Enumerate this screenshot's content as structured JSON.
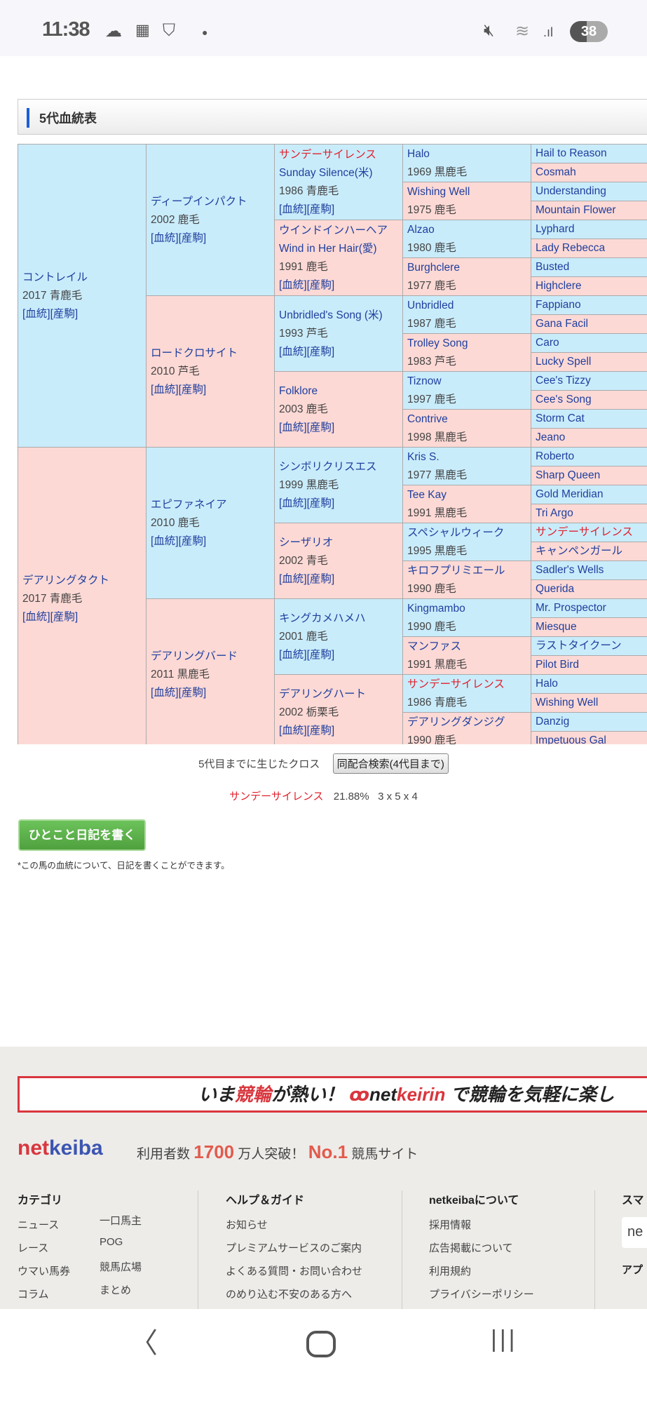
{
  "status_bar": {
    "time": "11:38",
    "icons": [
      "cloud-icon",
      "calendar-icon",
      "shield-check-icon",
      "dot-icon",
      "mute-icon",
      "wifi-icon",
      "signal-icon"
    ],
    "battery": "38"
  },
  "section": {
    "title": "5代血統表"
  },
  "links": {
    "pedigree": "[血統]",
    "offspring": "[産駒]"
  },
  "colors": {
    "male": "#c9ecfb",
    "female": "#fdd9d5",
    "link": "#1f3f9e",
    "highlight": "#e0222e"
  },
  "pedigree": {
    "gen1": [
      {
        "name": "コントレイル",
        "info": "2017 青鹿毛"
      },
      {
        "name": "デアリングタクト",
        "info": "2017 青鹿毛"
      }
    ],
    "gen2": [
      {
        "name": "ディープインパクト",
        "info": "2002 鹿毛"
      },
      {
        "name": "ロードクロサイト",
        "info": "2010 芦毛"
      },
      {
        "name": "エピファネイア",
        "info": "2010 鹿毛"
      },
      {
        "name": "デアリングバード",
        "info": "2011 黒鹿毛"
      }
    ],
    "gen3": [
      {
        "name": "サンデーサイレンス",
        "sub": "Sunday Silence(米)",
        "info": "1986 青鹿毛",
        "highlight": true
      },
      {
        "name": "ウインドインハーヘア",
        "sub": "Wind in Her Hair(愛)",
        "info": "1991 鹿毛"
      },
      {
        "name": "Unbridled's Song (米)",
        "info": "1993 芦毛"
      },
      {
        "name": "Folklore",
        "info": "2003 鹿毛"
      },
      {
        "name": "シンボリクリスエス",
        "info": "1999 黒鹿毛"
      },
      {
        "name": "シーザリオ",
        "info": "2002 青毛"
      },
      {
        "name": "キングカメハメハ",
        "info": "2001 鹿毛"
      },
      {
        "name": "デアリングハート",
        "info": "2002 栃栗毛"
      }
    ],
    "gen4": [
      {
        "name": "Halo",
        "info": "1969 黒鹿毛"
      },
      {
        "name": "Wishing Well",
        "info": "1975 鹿毛"
      },
      {
        "name": "Alzao",
        "info": "1980 鹿毛"
      },
      {
        "name": "Burghclere",
        "info": "1977 鹿毛"
      },
      {
        "name": "Unbridled",
        "info": "1987 鹿毛"
      },
      {
        "name": "Trolley Song",
        "info": "1983 芦毛"
      },
      {
        "name": "Tiznow",
        "info": "1997 鹿毛"
      },
      {
        "name": "Contrive",
        "info": "1998 黒鹿毛"
      },
      {
        "name": "Kris S.",
        "info": "1977 黒鹿毛"
      },
      {
        "name": "Tee Kay",
        "info": "1991 黒鹿毛"
      },
      {
        "name": "スペシャルウィーク",
        "info": "1995 黒鹿毛"
      },
      {
        "name": "キロフプリミエール",
        "info": "1990 鹿毛"
      },
      {
        "name": "Kingmambo",
        "info": "1990 鹿毛"
      },
      {
        "name": "マンファス",
        "info": "1991 黒鹿毛"
      },
      {
        "name": "サンデーサイレンス",
        "info": "1986 青鹿毛",
        "highlight": true
      },
      {
        "name": "デアリングダンジグ",
        "info": "1990 鹿毛"
      }
    ],
    "gen5": [
      {
        "name": "Hail to Reason"
      },
      {
        "name": "Cosmah"
      },
      {
        "name": "Understanding"
      },
      {
        "name": "Mountain Flower"
      },
      {
        "name": "Lyphard"
      },
      {
        "name": "Lady Rebecca"
      },
      {
        "name": "Busted"
      },
      {
        "name": "Highclere"
      },
      {
        "name": "Fappiano"
      },
      {
        "name": "Gana Facil"
      },
      {
        "name": "Caro"
      },
      {
        "name": "Lucky Spell"
      },
      {
        "name": "Cee's Tizzy"
      },
      {
        "name": "Cee's Song"
      },
      {
        "name": "Storm Cat"
      },
      {
        "name": "Jeano"
      },
      {
        "name": "Roberto"
      },
      {
        "name": "Sharp Queen"
      },
      {
        "name": "Gold Meridian"
      },
      {
        "name": "Tri Argo"
      },
      {
        "name": "サンデーサイレンス",
        "highlight": true
      },
      {
        "name": "キャンペンガール"
      },
      {
        "name": "Sadler's Wells"
      },
      {
        "name": "Querida"
      },
      {
        "name": "Mr. Prospector"
      },
      {
        "name": "Miesque"
      },
      {
        "name": "ラストタイクーン"
      },
      {
        "name": "Pilot Bird"
      },
      {
        "name": "Halo"
      },
      {
        "name": "Wishing Well"
      },
      {
        "name": "Danzig"
      },
      {
        "name": "Impetuous Gal"
      }
    ]
  },
  "cross": {
    "label": "5代目までに生じたクロス",
    "search_button": "同配合検索(4代目まで)",
    "horse": "サンデーサイレンス",
    "percent": "21.88%",
    "pattern": "3 x 5 x 4"
  },
  "diary": {
    "button": "ひとこと日記を書く",
    "note": "*この馬の血統について、日記を書くことができます。"
  },
  "footer": {
    "banner": {
      "pre": "いま",
      "red1": "競輪",
      "mid": "が熱い！",
      "logo_a": "net",
      "logo_b": "keirin",
      "post": "で競輪を気軽に楽し"
    },
    "logo": {
      "a": "net",
      "b": "keiba"
    },
    "tagline": {
      "pre": "利用者数",
      "num": "1700",
      "mid": "万人突破！",
      "rank": "No.1",
      "post": "競馬サイト"
    },
    "columns": [
      {
        "title": "カテゴリ",
        "items": [
          "ニュース",
          "レース",
          "ウマい馬券",
          "コラム"
        ],
        "items2": [
          "一口馬主",
          "POG",
          "競馬広場",
          "まとめ"
        ]
      },
      {
        "title": "ヘルプ＆ガイド",
        "items": [
          "お知らせ",
          "プレミアムサービスのご案内",
          "よくある質問・お問い合わせ",
          "のめり込む不安のある方へ"
        ]
      },
      {
        "title": "netkeibaについて",
        "items": [
          "採用情報",
          "広告掲載について",
          "利用規約",
          "プライバシーポリシー"
        ]
      },
      {
        "title": "スマ",
        "items": [
          "ne",
          "アプ"
        ]
      }
    ]
  },
  "nav": {
    "back": "back-icon",
    "home": "home-icon",
    "recents": "recents-icon"
  }
}
